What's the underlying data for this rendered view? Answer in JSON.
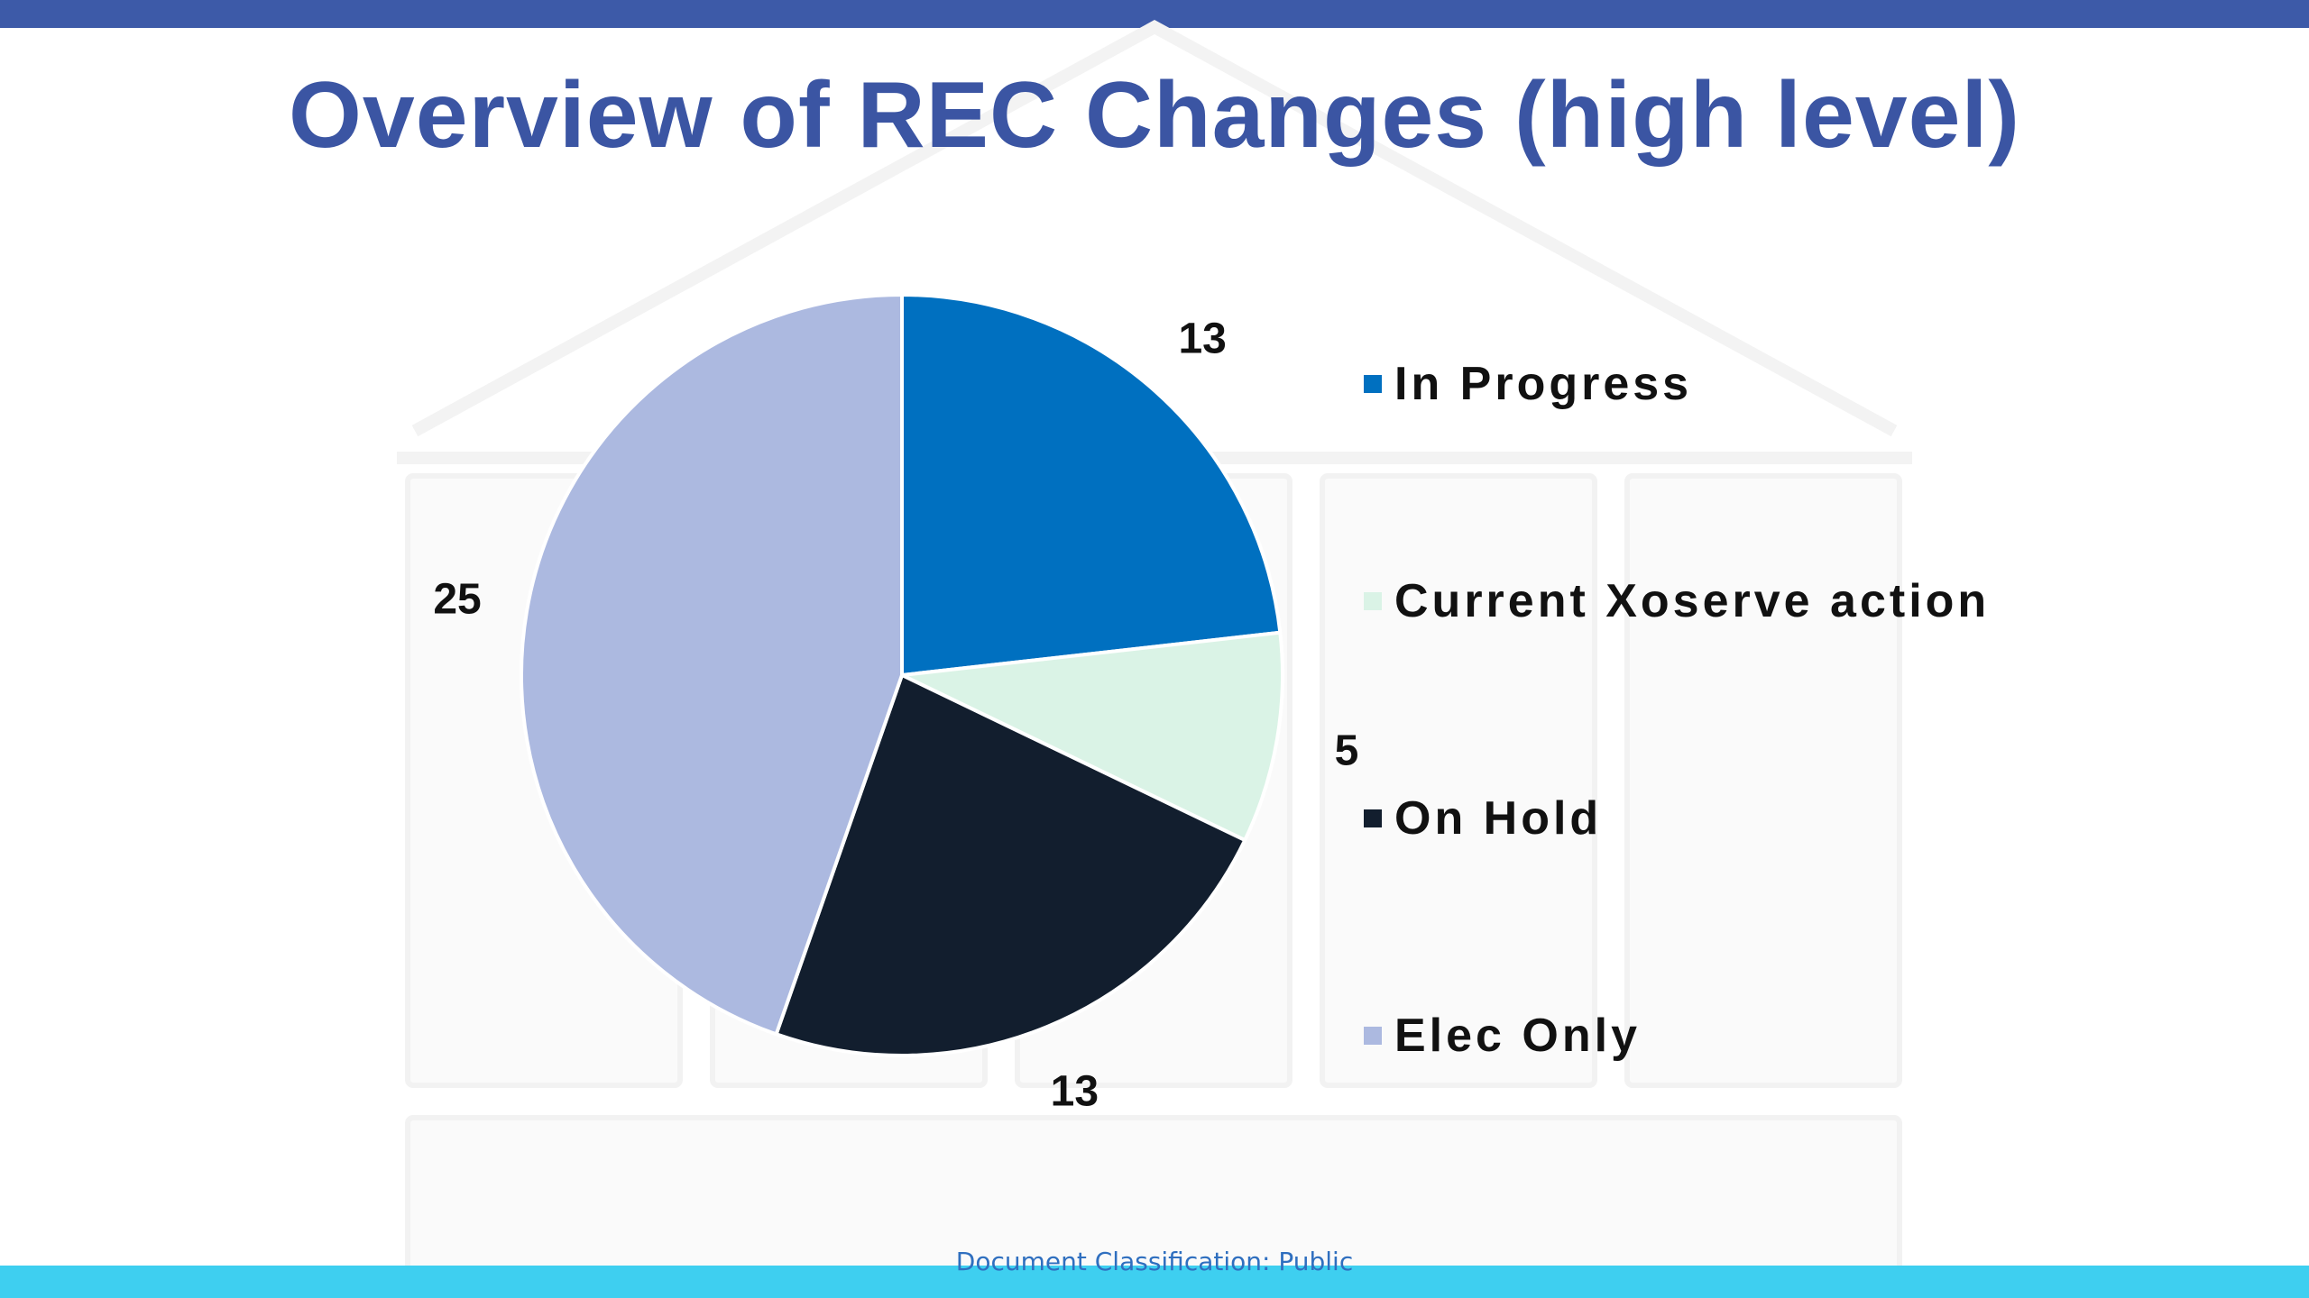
{
  "slide": {
    "title": "Overview of REC Changes (high level)",
    "classification": "Document Classification: Public"
  },
  "colors": {
    "title": "#3b55a3",
    "top_bar": "#3d5aa8",
    "bottom_bar": "#3ecff0",
    "classification_text": "#2f6fbf",
    "label_text": "#111111"
  },
  "chart_data": {
    "type": "pie",
    "title": "",
    "categories": [
      "In Progress",
      "Current Xoserve action",
      "On Hold",
      "Elec Only"
    ],
    "values": [
      13,
      5,
      13,
      25
    ],
    "colors": [
      "#0070c0",
      "#daf3e6",
      "#121e2e",
      "#acb9e0"
    ],
    "data_labels": [
      "13",
      "5",
      "13",
      "25"
    ],
    "start_angle_deg": 0,
    "direction": "clockwise",
    "legend": {
      "position": "right",
      "entries": [
        "In Progress",
        "Current Xoserve action",
        "On Hold",
        "Elec Only"
      ]
    }
  }
}
